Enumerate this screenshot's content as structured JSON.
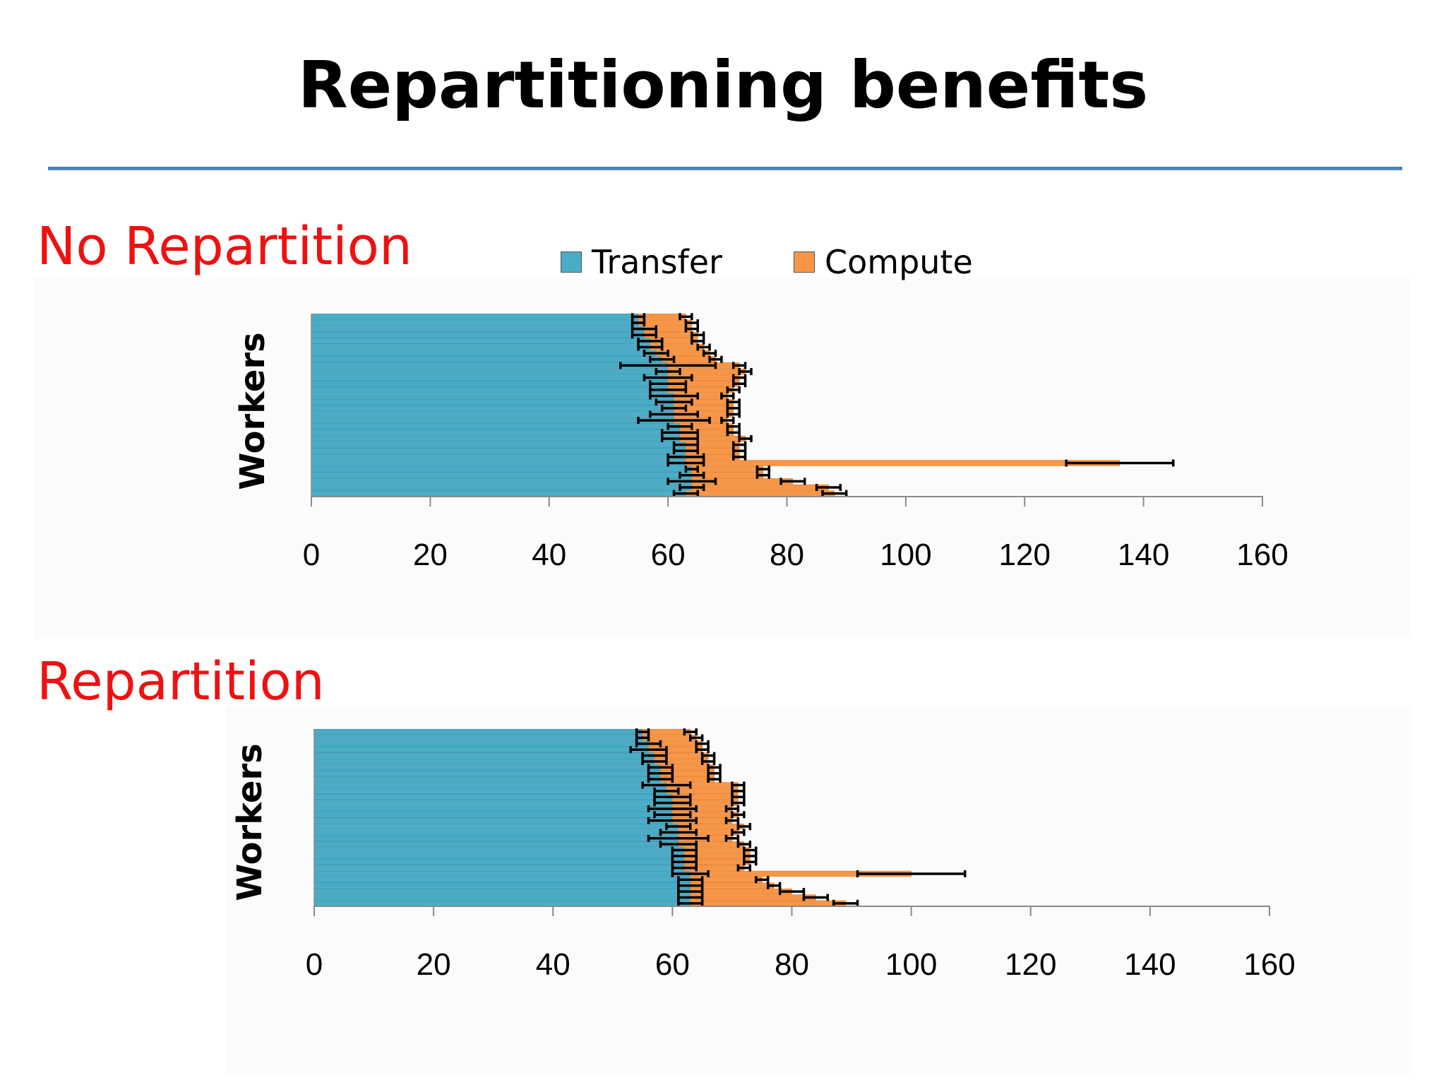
{
  "slide": {
    "title": "Repartitioning benefits"
  },
  "legend": {
    "transfer": "Transfer",
    "compute": "Compute"
  },
  "colors": {
    "transfer": "#4bacc6",
    "compute": "#f79646",
    "rule": "#4f81bd",
    "section_label": "#ee1111"
  },
  "sections": {
    "no_repartition": "No Repartition",
    "repartition": "Repartition"
  },
  "chart_data": [
    {
      "type": "bar",
      "orientation": "horizontal",
      "stacked": true,
      "title": "No Repartition",
      "ylabel": "Workers",
      "xlabel": "",
      "xlim": [
        0,
        160
      ],
      "xticks": [
        "0",
        "20",
        "40",
        "60",
        "80",
        "100",
        "120",
        "140",
        "160"
      ],
      "error_bars": true,
      "series": [
        {
          "name": "Transfer",
          "values": [
            55,
            55,
            56,
            56,
            57,
            57,
            58,
            59,
            60,
            60,
            60,
            60,
            60,
            61,
            61,
            61,
            61,
            61,
            62,
            62,
            62,
            63,
            63,
            63,
            63,
            64,
            64,
            64,
            64,
            63
          ],
          "errors": [
            1,
            1,
            2,
            2,
            2,
            2,
            2,
            2,
            8,
            2,
            4,
            3,
            3,
            4,
            3,
            2,
            4,
            6,
            2,
            3,
            3,
            2,
            2,
            3,
            3,
            1,
            2,
            4,
            2,
            2
          ]
        },
        {
          "name": "Compute",
          "values": [
            8,
            9,
            8,
            9,
            8,
            9,
            9,
            9,
            12,
            13,
            12,
            12,
            11,
            9,
            10,
            10,
            10,
            9,
            9,
            9,
            11,
            9,
            9,
            9,
            73,
            12,
            12,
            17,
            23,
            25
          ],
          "errors": [
            1,
            1,
            1,
            1,
            1,
            1,
            1,
            1,
            1,
            1,
            1,
            1,
            1,
            1,
            1,
            1,
            1,
            1,
            1,
            1,
            1,
            1,
            1,
            1,
            9,
            1,
            1,
            2,
            2,
            2
          ]
        }
      ]
    },
    {
      "type": "bar",
      "orientation": "horizontal",
      "stacked": true,
      "title": "Repartition",
      "ylabel": "Workers",
      "xlabel": "",
      "xlim": [
        0,
        160
      ],
      "xticks": [
        "0",
        "20",
        "40",
        "60",
        "80",
        "100",
        "120",
        "140",
        "160"
      ],
      "error_bars": true,
      "series": [
        {
          "name": "Transfer",
          "values": [
            55,
            55,
            56,
            56,
            57,
            57,
            58,
            58,
            58,
            59,
            59,
            60,
            60,
            60,
            60,
            60,
            61,
            61,
            61,
            61,
            62,
            62,
            62,
            62,
            63,
            63,
            63,
            63,
            63,
            63
          ],
          "errors": [
            1,
            1,
            2,
            3,
            2,
            2,
            2,
            2,
            2,
            4,
            2,
            3,
            3,
            4,
            3,
            4,
            2,
            3,
            5,
            3,
            2,
            2,
            2,
            2,
            3,
            2,
            2,
            2,
            2,
            2
          ]
        },
        {
          "name": "Compute",
          "values": [
            8,
            9,
            9,
            9,
            9,
            9,
            9,
            9,
            9,
            12,
            12,
            11,
            11,
            10,
            11,
            10,
            11,
            10,
            9,
            11,
            11,
            11,
            11,
            10,
            37,
            12,
            14,
            17,
            21,
            26
          ],
          "errors": [
            1,
            1,
            1,
            1,
            1,
            1,
            1,
            1,
            1,
            1,
            1,
            1,
            1,
            1,
            1,
            1,
            1,
            1,
            1,
            1,
            1,
            1,
            1,
            1,
            9,
            1,
            1,
            2,
            2,
            2
          ]
        }
      ]
    }
  ]
}
